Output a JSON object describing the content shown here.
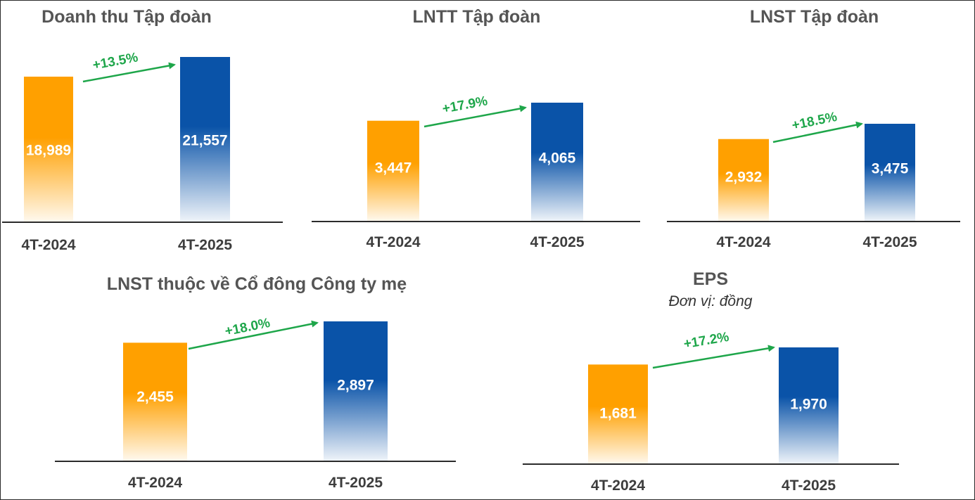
{
  "colors": {
    "y2024": "#FFA000",
    "y2025": "#0A53A8",
    "growth": "#1EA64A",
    "axis": "#2B2B2B"
  },
  "chart_data": [
    {
      "type": "bar",
      "title": "Doanh thu Tập đoàn",
      "subtitle": "",
      "categories": [
        "4T-2024",
        "4T-2025"
      ],
      "values": [
        18989,
        21557
      ],
      "value_labels": [
        "18,989",
        "21,557"
      ],
      "growth_label": "+13.5%"
    },
    {
      "type": "bar",
      "title": "LNTT Tập đoàn",
      "subtitle": "",
      "categories": [
        "4T-2024",
        "4T-2025"
      ],
      "values": [
        3447,
        4065
      ],
      "value_labels": [
        "3,447",
        "4,065"
      ],
      "growth_label": "+17.9%"
    },
    {
      "type": "bar",
      "title": "LNST Tập đoàn",
      "subtitle": "",
      "categories": [
        "4T-2024",
        "4T-2025"
      ],
      "values": [
        2932,
        3475
      ],
      "value_labels": [
        "2,932",
        "3,475"
      ],
      "growth_label": "+18.5%"
    },
    {
      "type": "bar",
      "title": "LNST thuộc về Cổ đông Công ty mẹ",
      "subtitle": "",
      "categories": [
        "4T-2024",
        "4T-2025"
      ],
      "values": [
        2455,
        2897
      ],
      "value_labels": [
        "2,455",
        "2,897"
      ],
      "growth_label": "+18.0%"
    },
    {
      "type": "bar",
      "title": "EPS",
      "subtitle": "Đơn vị: đồng",
      "categories": [
        "4T-2024",
        "4T-2025"
      ],
      "values": [
        1681,
        1970
      ],
      "value_labels": [
        "1,681",
        "1,970"
      ],
      "growth_label": "+17.2%"
    }
  ]
}
